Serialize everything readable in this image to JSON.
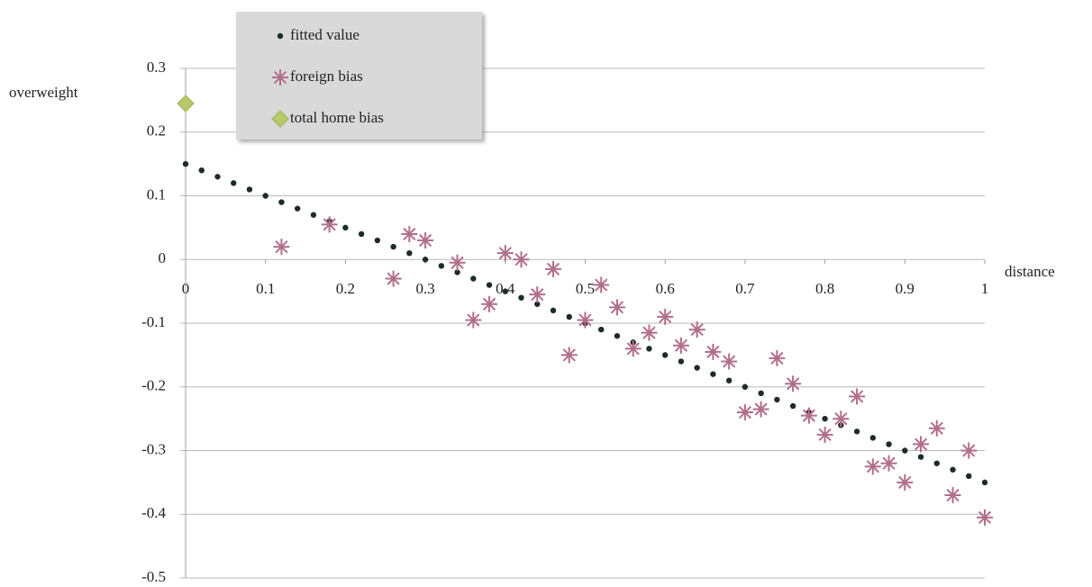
{
  "chart_data": {
    "type": "scatter",
    "x_label": "distance",
    "y_label": "overweight",
    "xlim": [
      0,
      1
    ],
    "xticks": [
      0,
      0.1,
      0.2,
      0.3,
      0.4,
      0.5,
      0.6,
      0.7,
      0.8,
      0.9,
      1
    ],
    "ylim": [
      -0.5,
      0.3
    ],
    "yticks": [
      -0.5,
      -0.4,
      -0.3,
      -0.2,
      -0.1,
      0,
      0.1,
      0.2,
      0.3
    ],
    "grid": true,
    "legend": "top-left",
    "series": [
      {
        "name": "fitted value",
        "color": "#1e2b2b",
        "marker": "dot",
        "x": [
          0,
          0.02,
          0.04,
          0.06,
          0.08,
          0.1,
          0.12,
          0.14,
          0.16,
          0.18,
          0.2,
          0.22,
          0.24,
          0.26,
          0.28,
          0.3,
          0.32,
          0.34,
          0.36,
          0.38,
          0.4,
          0.42,
          0.44,
          0.46,
          0.48,
          0.5,
          0.52,
          0.54,
          0.56,
          0.58,
          0.6,
          0.62,
          0.64,
          0.66,
          0.68,
          0.7,
          0.72,
          0.74,
          0.76,
          0.78,
          0.8,
          0.82,
          0.84,
          0.86,
          0.88,
          0.9,
          0.92,
          0.94,
          0.96,
          0.98,
          1
        ],
        "values": [
          0.15,
          0.14,
          0.13,
          0.12,
          0.11,
          0.1,
          0.09,
          0.08,
          0.07,
          0.06,
          0.05,
          0.04,
          0.03,
          0.02,
          0.01,
          0,
          -0.01,
          -0.02,
          -0.03,
          -0.04,
          -0.05,
          -0.06,
          -0.07,
          -0.08,
          -0.09,
          -0.1,
          -0.11,
          -0.12,
          -0.13,
          -0.14,
          -0.15,
          -0.16,
          -0.17,
          -0.18,
          -0.19,
          -0.2,
          -0.21,
          -0.22,
          -0.23,
          -0.24,
          -0.25,
          -0.26,
          -0.27,
          -0.28,
          -0.29,
          -0.3,
          -0.31,
          -0.32,
          -0.33,
          -0.34,
          -0.35
        ]
      },
      {
        "name": "foreign bias",
        "color": "#b06f8a",
        "marker": "asterisk",
        "x": [
          0.12,
          0.18,
          0.26,
          0.28,
          0.3,
          0.34,
          0.36,
          0.38,
          0.4,
          0.42,
          0.44,
          0.46,
          0.48,
          0.5,
          0.52,
          0.54,
          0.56,
          0.58,
          0.6,
          0.62,
          0.64,
          0.66,
          0.68,
          0.7,
          0.72,
          0.74,
          0.76,
          0.78,
          0.8,
          0.82,
          0.84,
          0.86,
          0.88,
          0.9,
          0.92,
          0.94,
          0.96,
          0.98,
          1
        ],
        "values": [
          0.02,
          0.055,
          -0.03,
          0.04,
          0.03,
          -0.005,
          -0.095,
          -0.07,
          0.01,
          0,
          -0.055,
          -0.015,
          -0.15,
          -0.095,
          -0.04,
          -0.075,
          -0.14,
          -0.115,
          -0.09,
          -0.135,
          -0.11,
          -0.145,
          -0.16,
          -0.24,
          -0.235,
          -0.155,
          -0.195,
          -0.245,
          -0.275,
          -0.25,
          -0.215,
          -0.325,
          -0.32,
          -0.35,
          -0.29,
          -0.265,
          -0.37,
          -0.3,
          -0.405
        ]
      },
      {
        "name": "total home bias",
        "color": "#b7c96a",
        "marker": "diamond",
        "x": [
          0
        ],
        "values": [
          0.245
        ]
      }
    ]
  }
}
